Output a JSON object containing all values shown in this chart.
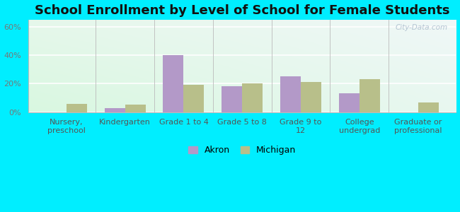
{
  "title": "School Enrollment by Level of School for Female Students",
  "categories": [
    "Nursery,\npreschool",
    "Kindergarten",
    "Grade 1 to 4",
    "Grade 5 to 8",
    "Grade 9 to\n12",
    "College\nundergrad",
    "Graduate or\nprofessional"
  ],
  "akron_values": [
    0,
    3,
    40,
    18,
    25,
    13,
    0
  ],
  "michigan_values": [
    6,
    5.5,
    19,
    20,
    21,
    23,
    7
  ],
  "akron_color": "#b399c8",
  "michigan_color": "#b8bf8a",
  "bar_width": 0.35,
  "ylim": [
    0,
    65
  ],
  "yticks": [
    0,
    20,
    40,
    60
  ],
  "ytick_labels": [
    "0%",
    "20%",
    "40%",
    "60%"
  ],
  "background_color": "#00eeff",
  "title_fontsize": 13,
  "tick_fontsize": 8,
  "legend_fontsize": 9,
  "watermark": "City-Data.com"
}
